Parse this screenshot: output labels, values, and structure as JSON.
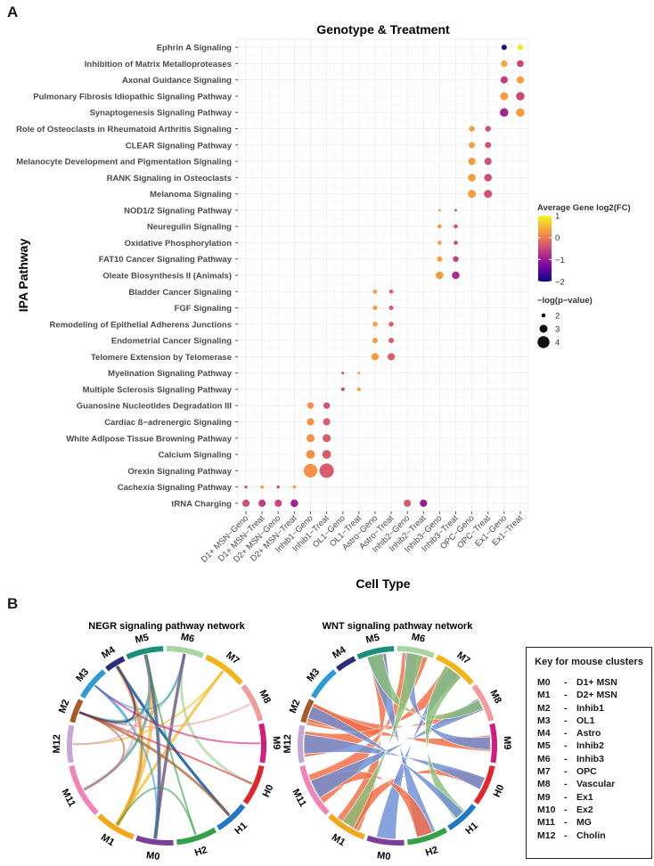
{
  "panels": {
    "a": "A",
    "b": "B"
  },
  "chart_data": [
    {
      "type": "dot",
      "title": "Genotype & Treatment",
      "xlabel": "Cell Type",
      "ylabel": "IPA Pathway",
      "categories_x": [
        "D1+ MSN−Geno",
        "D1+ MSN−Treat",
        "D2+ MSN−Geno",
        "D2+ MSN−Treat",
        "Inhib1−Geno",
        "Inhib1−Treat",
        "OL1−Geno",
        "OL1−Treat",
        "Astro−Geno",
        "Astro−Treat",
        "Inhib2−Geno",
        "Inhib2−Treat",
        "Inhib3−Geno",
        "Inhib3−Treat",
        "OPC−Geno",
        "OPC−Treat",
        "Ex1−Geno",
        "Ex1−Treat"
      ],
      "categories_y": [
        "Ephrin A Signaling",
        "Inhibition of Matrix Metalloproteases",
        "Axonal Guidance Signaling ",
        "Pulmonary Fibrosis Idiopathic Signaling Pathway",
        "Synaptogenesis Signaling Pathway",
        "Role of Osteoclasts in Rheumatoid Arthritis Signaling",
        "CLEAR Signaling Pathway",
        "Melanocyte Development and Pigmentation Signaling",
        "RANK Signaling in Osteoclasts",
        "Melanoma Signaling",
        "NOD1/2 Signaling Pathway ",
        "Neuregulin Signaling",
        "Oxidative Phosphorylation",
        "FAT10 Cancer Signaling Pathway",
        "Oleate Biosynthesis II (Animals)",
        "Bladder Cancer Signaling",
        "FGF Signaling",
        "Remodeling of Epithelial Adherens Junctions",
        "Endometrial Cancer Signaling",
        "Telomere Extension by Telomerase",
        "Myelination Signaling Pathway",
        "Multiple Sclerosis Signaling Pathway ",
        "Guanosine Nucleotides Degradation III",
        "Cardiac ß−adrenergic Signaling",
        "White Adipose Tissue Browning Pathway",
        "Calcium Signaling",
        "Orexin Signaling Pathway",
        "Cachexia Signaling Pathway",
        "tRNA Charging"
      ],
      "points": [
        {
          "x": "Ex1−Geno",
          "y": "Ephrin A Signaling",
          "fc": -1.9,
          "nlogp": 2.3
        },
        {
          "x": "Ex1−Treat",
          "y": "Ephrin A Signaling",
          "fc": 0.9,
          "nlogp": 2.4
        },
        {
          "x": "Ex1−Geno",
          "y": "Inhibition of Matrix Metalloproteases",
          "fc": 0.4,
          "nlogp": 2.6
        },
        {
          "x": "Ex1−Treat",
          "y": "Inhibition of Matrix Metalloproteases",
          "fc": -0.5,
          "nlogp": 2.7
        },
        {
          "x": "Ex1−Geno",
          "y": "Axonal Guidance Signaling ",
          "fc": -0.6,
          "nlogp": 2.8
        },
        {
          "x": "Ex1−Treat",
          "y": "Axonal Guidance Signaling ",
          "fc": 0.3,
          "nlogp": 2.8
        },
        {
          "x": "Ex1−Geno",
          "y": "Pulmonary Fibrosis Idiopathic Signaling Pathway",
          "fc": 0.3,
          "nlogp": 3.0
        },
        {
          "x": "Ex1−Treat",
          "y": "Pulmonary Fibrosis Idiopathic Signaling Pathway",
          "fc": -0.5,
          "nlogp": 3.1
        },
        {
          "x": "Ex1−Geno",
          "y": "Synaptogenesis Signaling Pathway",
          "fc": -0.9,
          "nlogp": 3.1
        },
        {
          "x": "Ex1−Treat",
          "y": "Synaptogenesis Signaling Pathway",
          "fc": 0.3,
          "nlogp": 3.1
        },
        {
          "x": "OPC−Geno",
          "y": "Role of Osteoclasts in Rheumatoid Arthritis Signaling",
          "fc": 0.3,
          "nlogp": 2.4
        },
        {
          "x": "OPC−Treat",
          "y": "Role of Osteoclasts in Rheumatoid Arthritis Signaling",
          "fc": -0.4,
          "nlogp": 2.4
        },
        {
          "x": "OPC−Geno",
          "y": "CLEAR Signaling Pathway",
          "fc": 0.3,
          "nlogp": 2.5
        },
        {
          "x": "OPC−Treat",
          "y": "CLEAR Signaling Pathway",
          "fc": -0.4,
          "nlogp": 2.5
        },
        {
          "x": "OPC−Geno",
          "y": "Melanocyte Development and Pigmentation Signaling",
          "fc": 0.3,
          "nlogp": 2.8
        },
        {
          "x": "OPC−Treat",
          "y": "Melanocyte Development and Pigmentation Signaling",
          "fc": -0.4,
          "nlogp": 2.8
        },
        {
          "x": "OPC−Geno",
          "y": "RANK Signaling in Osteoclasts",
          "fc": 0.3,
          "nlogp": 2.9
        },
        {
          "x": "OPC−Treat",
          "y": "RANK Signaling in Osteoclasts",
          "fc": -0.4,
          "nlogp": 2.9
        },
        {
          "x": "OPC−Geno",
          "y": "Melanoma Signaling",
          "fc": 0.3,
          "nlogp": 3.0
        },
        {
          "x": "OPC−Treat",
          "y": "Melanoma Signaling",
          "fc": -0.4,
          "nlogp": 3.0
        },
        {
          "x": "Inhib3−Geno",
          "y": "NOD1/2 Signaling Pathway ",
          "fc": 0.3,
          "nlogp": 1.6
        },
        {
          "x": "Inhib3−Treat",
          "y": "NOD1/2 Signaling Pathway ",
          "fc": -0.4,
          "nlogp": 1.6
        },
        {
          "x": "Inhib3−Geno",
          "y": "Neuregulin Signaling",
          "fc": 0.3,
          "nlogp": 2.0
        },
        {
          "x": "Inhib3−Treat",
          "y": "Neuregulin Signaling",
          "fc": -0.4,
          "nlogp": 2.0
        },
        {
          "x": "Inhib3−Geno",
          "y": "Oxidative Phosphorylation",
          "fc": 0.3,
          "nlogp": 2.0
        },
        {
          "x": "Inhib3−Treat",
          "y": "Oxidative Phosphorylation",
          "fc": -0.5,
          "nlogp": 2.0
        },
        {
          "x": "Inhib3−Geno",
          "y": "FAT10 Cancer Signaling Pathway",
          "fc": 0.3,
          "nlogp": 2.3
        },
        {
          "x": "Inhib3−Treat",
          "y": "FAT10 Cancer Signaling Pathway",
          "fc": -0.6,
          "nlogp": 2.4
        },
        {
          "x": "Inhib3−Geno",
          "y": "Oleate Biosynthesis II (Animals)",
          "fc": 0.3,
          "nlogp": 2.9
        },
        {
          "x": "Inhib3−Treat",
          "y": "Oleate Biosynthesis II (Animals)",
          "fc": -0.8,
          "nlogp": 2.9
        },
        {
          "x": "Astro−Geno",
          "y": "Bladder Cancer Signaling",
          "fc": 0.3,
          "nlogp": 2.0
        },
        {
          "x": "Astro−Treat",
          "y": "Bladder Cancer Signaling",
          "fc": -0.3,
          "nlogp": 2.0
        },
        {
          "x": "Astro−Geno",
          "y": "FGF Signaling",
          "fc": 0.3,
          "nlogp": 2.1
        },
        {
          "x": "Astro−Treat",
          "y": "FGF Signaling",
          "fc": -0.3,
          "nlogp": 2.1
        },
        {
          "x": "Astro−Geno",
          "y": "Remodeling of Epithelial Adherens Junctions",
          "fc": 0.3,
          "nlogp": 2.2
        },
        {
          "x": "Astro−Treat",
          "y": "Remodeling of Epithelial Adherens Junctions",
          "fc": -0.3,
          "nlogp": 2.2
        },
        {
          "x": "Astro−Geno",
          "y": "Endometrial Cancer Signaling",
          "fc": 0.3,
          "nlogp": 2.3
        },
        {
          "x": "Astro−Treat",
          "y": "Endometrial Cancer Signaling",
          "fc": -0.3,
          "nlogp": 2.3
        },
        {
          "x": "Astro−Geno",
          "y": "Telomere Extension by Telomerase",
          "fc": 0.3,
          "nlogp": 2.8
        },
        {
          "x": "Astro−Treat",
          "y": "Telomere Extension by Telomerase",
          "fc": -0.3,
          "nlogp": 2.8
        },
        {
          "x": "OL1−Geno",
          "y": "Myelination Signaling Pathway",
          "fc": -0.5,
          "nlogp": 1.6
        },
        {
          "x": "OL1−Treat",
          "y": "Myelination Signaling Pathway",
          "fc": 0.3,
          "nlogp": 1.6
        },
        {
          "x": "OL1−Geno",
          "y": "Multiple Sclerosis Signaling Pathway ",
          "fc": -0.5,
          "nlogp": 1.9
        },
        {
          "x": "OL1−Treat",
          "y": "Multiple Sclerosis Signaling Pathway ",
          "fc": 0.3,
          "nlogp": 1.9
        },
        {
          "x": "Inhib1−Geno",
          "y": "Guanosine Nucleotides Degradation III",
          "fc": 0.2,
          "nlogp": 2.6
        },
        {
          "x": "Inhib1−Treat",
          "y": "Guanosine Nucleotides Degradation III",
          "fc": -0.4,
          "nlogp": 2.6
        },
        {
          "x": "Inhib1−Geno",
          "y": "Cardiac ß−adrenergic Signaling",
          "fc": 0.2,
          "nlogp": 2.8
        },
        {
          "x": "Inhib1−Treat",
          "y": "Cardiac ß−adrenergic Signaling",
          "fc": -0.3,
          "nlogp": 2.8
        },
        {
          "x": "Inhib1−Geno",
          "y": "White Adipose Tissue Browning Pathway",
          "fc": 0.2,
          "nlogp": 3.0
        },
        {
          "x": "Inhib1−Treat",
          "y": "White Adipose Tissue Browning Pathway",
          "fc": -0.3,
          "nlogp": 3.0
        },
        {
          "x": "Inhib1−Geno",
          "y": "Calcium Signaling",
          "fc": 0.2,
          "nlogp": 3.2
        },
        {
          "x": "Inhib1−Treat",
          "y": "Calcium Signaling",
          "fc": -0.3,
          "nlogp": 3.2
        },
        {
          "x": "Inhib1−Geno",
          "y": "Orexin Signaling Pathway",
          "fc": 0.2,
          "nlogp": 4.4
        },
        {
          "x": "Inhib1−Treat",
          "y": "Orexin Signaling Pathway",
          "fc": -0.3,
          "nlogp": 4.6
        },
        {
          "x": "D1+ MSN−Geno",
          "y": "Cachexia Signaling Pathway",
          "fc": -0.5,
          "nlogp": 1.7
        },
        {
          "x": "D1+ MSN−Treat",
          "y": "Cachexia Signaling Pathway",
          "fc": 0.3,
          "nlogp": 1.8
        },
        {
          "x": "D2+ MSN−Geno",
          "y": "Cachexia Signaling Pathway",
          "fc": -0.5,
          "nlogp": 1.7
        },
        {
          "x": "D2+ MSN−Treat",
          "y": "Cachexia Signaling Pathway",
          "fc": 0.3,
          "nlogp": 1.8
        },
        {
          "x": "D1+ MSN−Geno",
          "y": "tRNA Charging",
          "fc": -0.4,
          "nlogp": 2.8
        },
        {
          "x": "D1+ MSN−Treat",
          "y": "tRNA Charging",
          "fc": -0.6,
          "nlogp": 2.8
        },
        {
          "x": "D2+ MSN−Geno",
          "y": "tRNA Charging",
          "fc": -0.5,
          "nlogp": 2.8
        },
        {
          "x": "D2+ MSN−Treat",
          "y": "tRNA Charging",
          "fc": -0.9,
          "nlogp": 2.9
        },
        {
          "x": "Inhib2−Geno",
          "y": "tRNA Charging",
          "fc": -0.3,
          "nlogp": 2.8
        },
        {
          "x": "Inhib2−Treat",
          "y": "tRNA Charging",
          "fc": -1.0,
          "nlogp": 2.8
        }
      ],
      "color_legend": {
        "title": "Average Gene log2(FC)",
        "range": [
          -2,
          1
        ],
        "ticks": [
          "1",
          "0",
          "−1",
          "−2"
        ]
      },
      "size_legend": {
        "title": "−log(p−value)",
        "values": [
          2,
          3,
          4
        ],
        "labels": [
          "2",
          "3",
          "4"
        ]
      }
    },
    {
      "type": "chord",
      "title": "NEGR signaling pathway network",
      "segments": [
        "M5",
        "M6",
        "M7",
        "M8",
        "M9",
        "H0",
        "H1",
        "H2",
        "M0",
        "M1",
        "M11",
        "M12",
        "M2",
        "M3",
        "M4"
      ]
    },
    {
      "type": "chord",
      "title": "WNT signaling pathway network",
      "segments": [
        "M5",
        "M6",
        "M7",
        "M8",
        "M9",
        "H0",
        "H1",
        "H2",
        "M0",
        "M1",
        "M11",
        "M12",
        "M2",
        "M3",
        "M4"
      ]
    }
  ],
  "key": {
    "title": "Key for mouse clusters",
    "items": [
      {
        "id": "M0",
        "label": "D1+ MSN"
      },
      {
        "id": "M1",
        "label": "D2+ MSN"
      },
      {
        "id": "M2",
        "label": "Inhib1"
      },
      {
        "id": "M3",
        "label": "OL1"
      },
      {
        "id": "M4",
        "label": "Astro"
      },
      {
        "id": "M5",
        "label": "Inhib2"
      },
      {
        "id": "M6",
        "label": "Inhib3"
      },
      {
        "id": "M7",
        "label": "OPC"
      },
      {
        "id": "M8",
        "label": "Vascular"
      },
      {
        "id": "M9",
        "label": "Ex1"
      },
      {
        "id": "M10",
        "label": "Ex2"
      },
      {
        "id": "M11",
        "label": "MG"
      },
      {
        "id": "M12",
        "label": "Cholin"
      }
    ]
  },
  "segment_colors": {
    "M0": "#7b3f99",
    "M1": "#f2a81d",
    "M2": "#a65b2a",
    "M3": "#2b9bd8",
    "M4": "#2a2d7a",
    "M5": "#1a8f7a",
    "M6": "#a8d5a0",
    "M7": "#f2b517",
    "M8": "#f39a9a",
    "M9": "#d11d7b",
    "H0": "#e2242b",
    "H1": "#1f78c8",
    "H2": "#34a047",
    "M11": "#f283b7",
    "M12": "#c4a7d6"
  }
}
